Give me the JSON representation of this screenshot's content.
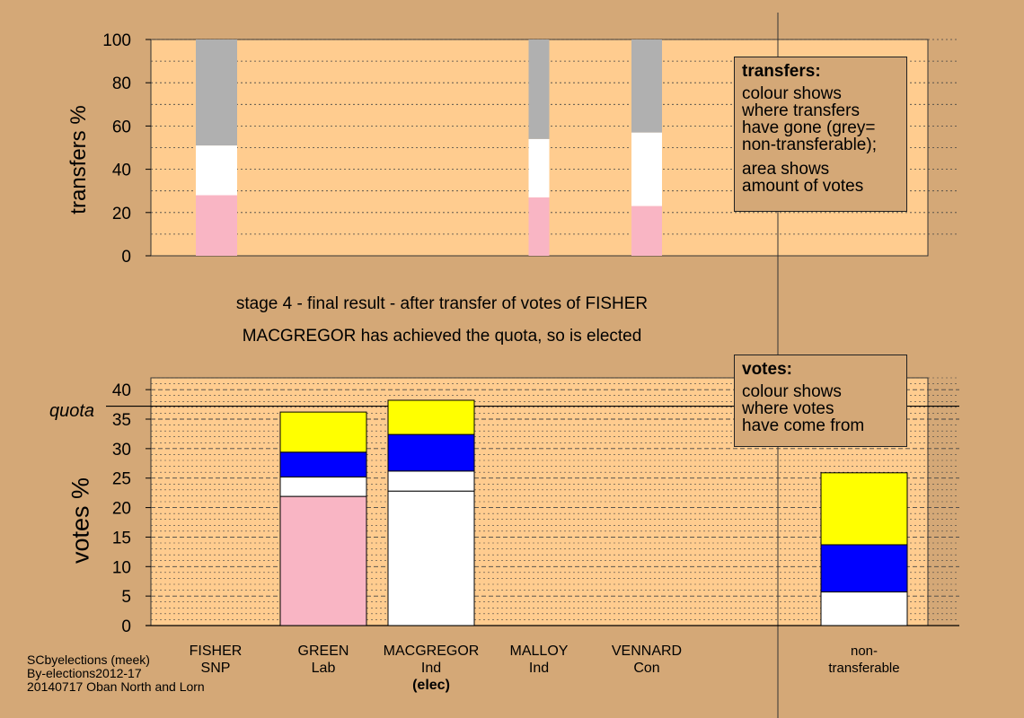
{
  "chart_data": [
    {
      "type": "bar",
      "name": "transfers",
      "ylabel": "transfers %",
      "ylim": [
        0,
        100
      ],
      "yticks": [
        0,
        20,
        40,
        60,
        80,
        100
      ],
      "grid": true,
      "categories": [
        "FISHER",
        "GREEN",
        "MACGREGOR",
        "MALLOY",
        "VENNARD"
      ],
      "series": [
        {
          "color": "#f9b5c4",
          "values": [
            0,
            0,
            0,
            27,
            23
          ]
        },
        {
          "color": "#ffffff",
          "values": [
            0,
            0,
            0,
            27,
            34
          ]
        },
        {
          "color": "#b0b0b0",
          "values": [
            0,
            0,
            0,
            46,
            43
          ]
        }
      ],
      "column_positions": [
        0,
        0,
        0,
        0,
        0
      ],
      "extra_bars": [
        {
          "label": "previous transfer column",
          "segments": [
            {
              "color": "#f9b5c4",
              "value": 28
            },
            {
              "color": "#ffffff",
              "value": 23
            },
            {
              "color": "#b0b0b0",
              "value": 49
            }
          ]
        }
      ]
    },
    {
      "type": "bar",
      "name": "votes",
      "ylabel": "votes %",
      "ylim": [
        0,
        42
      ],
      "yticks": [
        0,
        5,
        10,
        15,
        20,
        25,
        30,
        35,
        40
      ],
      "quota": 37.2,
      "quota_label": "quota",
      "grid": true,
      "categories": [
        "FISHER",
        "GREEN",
        "MACGREGOR",
        "MALLOY",
        "VENNARD",
        "non-transferable"
      ],
      "stacks": [
        [],
        [
          {
            "color": "#f9b5c4",
            "value": 21.9
          },
          {
            "color": "#ffffff",
            "value": 3.3
          },
          {
            "color": "#0000ff",
            "value": 4.2
          },
          {
            "color": "#ffff00",
            "value": 6.8
          }
        ],
        [
          {
            "color": "#ffffff",
            "value": 22.8
          },
          {
            "color": "#ffffff",
            "value": 3.4
          },
          {
            "color": "#0000ff",
            "value": 6.2
          },
          {
            "color": "#ffff00",
            "value": 5.8
          }
        ],
        [],
        [],
        [
          {
            "color": "#ffffff",
            "value": 5.7
          },
          {
            "color": "#0000ff",
            "value": 8.0
          },
          {
            "color": "#ffff00",
            "value": 12.2
          }
        ]
      ]
    }
  ],
  "title_line1": "stage 4 - final result - after transfer of votes of FISHER",
  "title_line2": "MACGREGOR has achieved the quota, so is elected",
  "legend_transfers": {
    "heading": "transfers:",
    "body1": "colour shows\nwhere transfers\nhave gone (grey=\nnon-transferable);",
    "body2": "area shows\namount of votes"
  },
  "legend_votes": {
    "heading": "votes:",
    "body": "colour shows\nwhere votes\nhave come from"
  },
  "candidates": [
    {
      "name": "FISHER",
      "party": "SNP",
      "note": ""
    },
    {
      "name": "GREEN",
      "party": "Lab",
      "note": ""
    },
    {
      "name": "MACGREGOR",
      "party": "Ind",
      "note": "(elec)"
    },
    {
      "name": "MALLOY",
      "party": "Ind",
      "note": ""
    },
    {
      "name": "VENNARD",
      "party": "Con",
      "note": ""
    },
    {
      "name": "non-",
      "party": "transferable",
      "note": ""
    }
  ],
  "footer": {
    "line1": "SCbyelections (meek)",
    "line2": "By-elections2012-17",
    "line3": "20140717 Oban North and Lorn"
  }
}
